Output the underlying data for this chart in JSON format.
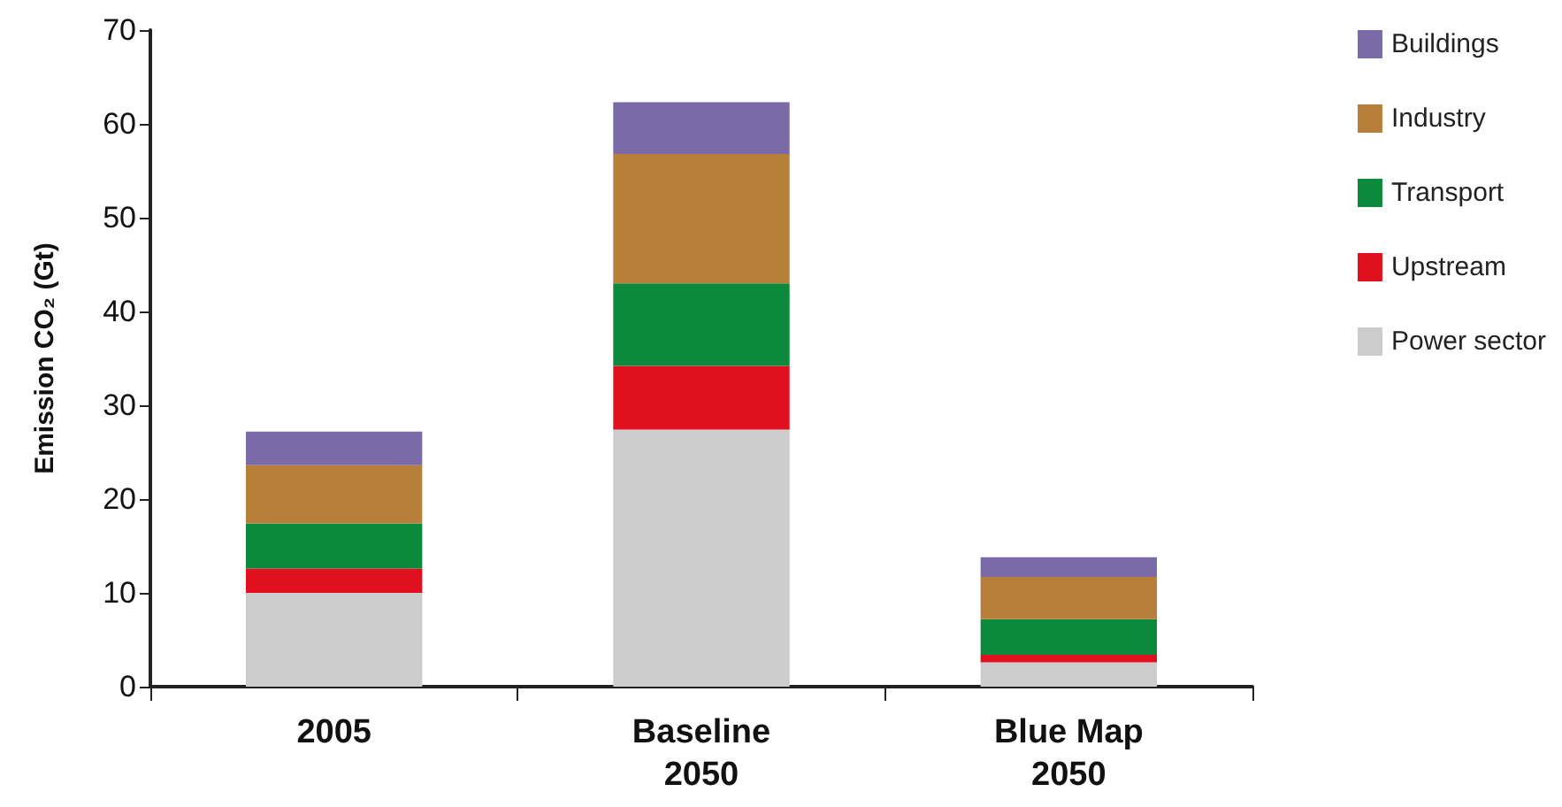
{
  "chart_data": {
    "type": "bar",
    "stacked": true,
    "ylabel": "Emission CO₂ (Gt)",
    "categories": [
      "2005",
      "Baseline\n2050",
      "Blue Map\n2050"
    ],
    "series": [
      {
        "name": "Power sector",
        "color": "#cccccc",
        "values": [
          10,
          27.4,
          2.6
        ]
      },
      {
        "name": "Upstream",
        "color": "#e0101f",
        "values": [
          2.6,
          6.8,
          0.8
        ]
      },
      {
        "name": "Transport",
        "color": "#0a8a3a",
        "values": [
          4.8,
          8.8,
          3.8
        ]
      },
      {
        "name": "Industry",
        "color": "#b87f3a",
        "values": [
          6.2,
          13.8,
          4.5
        ]
      },
      {
        "name": "Buildings",
        "color": "#7b6aa8",
        "values": [
          3.6,
          5.5,
          2.1
        ]
      }
    ],
    "ylim": [
      0,
      70
    ],
    "yticks": [
      0,
      10,
      20,
      30,
      40,
      50,
      60,
      70
    ],
    "grid": false,
    "legend": "right"
  }
}
